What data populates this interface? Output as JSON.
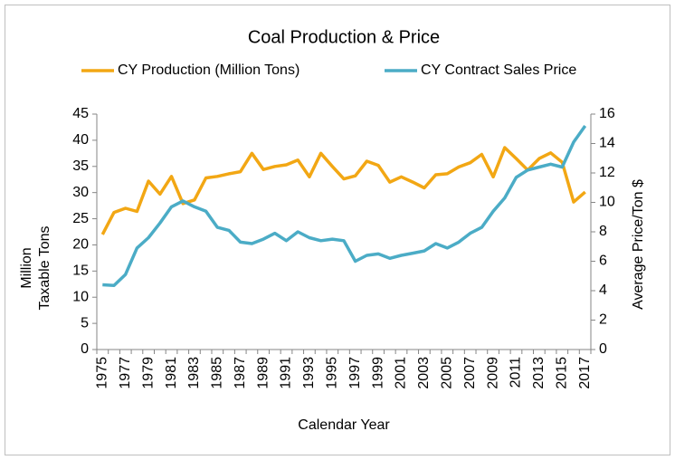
{
  "chart_data": {
    "type": "line",
    "title": "Coal Production & Price",
    "xlabel": "Calendar Year",
    "ylabel": [
      "Million",
      "Taxable Tons"
    ],
    "y2label": "Average  Price/Ton $",
    "categories": [
      "1975",
      null,
      "1977",
      null,
      "1979",
      null,
      "1981",
      null,
      "1983",
      null,
      "1985",
      null,
      "1987",
      null,
      "1989",
      null,
      "1991",
      null,
      "1993",
      null,
      "1995",
      null,
      "1997",
      null,
      "1999",
      null,
      "2001",
      null,
      "2003",
      null,
      "2005",
      null,
      "2007",
      null,
      "2009",
      null,
      "2011",
      null,
      "2013",
      null,
      "2015",
      null,
      "2017"
    ],
    "series": [
      {
        "name": "CY Production (Million Tons)",
        "color": "#f2a714",
        "values": [
          22,
          26.2,
          27,
          26.4,
          32.2,
          29.7,
          33.1,
          27.9,
          28.6,
          32.8,
          33.1,
          33.6,
          34,
          37.5,
          34.4,
          35,
          35.3,
          36.2,
          33,
          37.5,
          35,
          32.6,
          33.2,
          36,
          35.2,
          32,
          33,
          32,
          30.9,
          33.4,
          33.6,
          34.9,
          35.7,
          37.3,
          33,
          38.6,
          36.5,
          34.3,
          36.5,
          37.6,
          35.8,
          28.2,
          30.1
        ]
      },
      {
        "name": "CY Contract Sales Price",
        "color": "#4bacc6",
        "axis": "y2",
        "values": [
          4.4,
          4.35,
          5.1,
          6.9,
          7.6,
          8.6,
          9.7,
          10.1,
          9.7,
          9.4,
          8.3,
          8.1,
          7.3,
          7.2,
          7.5,
          7.9,
          7.4,
          8.0,
          7.6,
          7.4,
          7.5,
          7.4,
          6.0,
          6.4,
          6.5,
          6.2,
          6.4,
          6.55,
          6.7,
          7.2,
          6.9,
          7.3,
          7.9,
          8.3,
          9.4,
          10.3,
          11.7,
          12.2,
          12.4,
          12.6,
          12.4,
          14.1,
          15.2
        ]
      }
    ],
    "ylim": [
      0,
      45
    ],
    "yticks": [
      0,
      5,
      10,
      15,
      20,
      25,
      30,
      35,
      40,
      45
    ],
    "y2lim": [
      0,
      16
    ],
    "y2ticks": [
      0,
      2,
      4,
      6,
      8,
      10,
      12,
      14,
      16
    ],
    "legend": "top",
    "grid": false
  }
}
